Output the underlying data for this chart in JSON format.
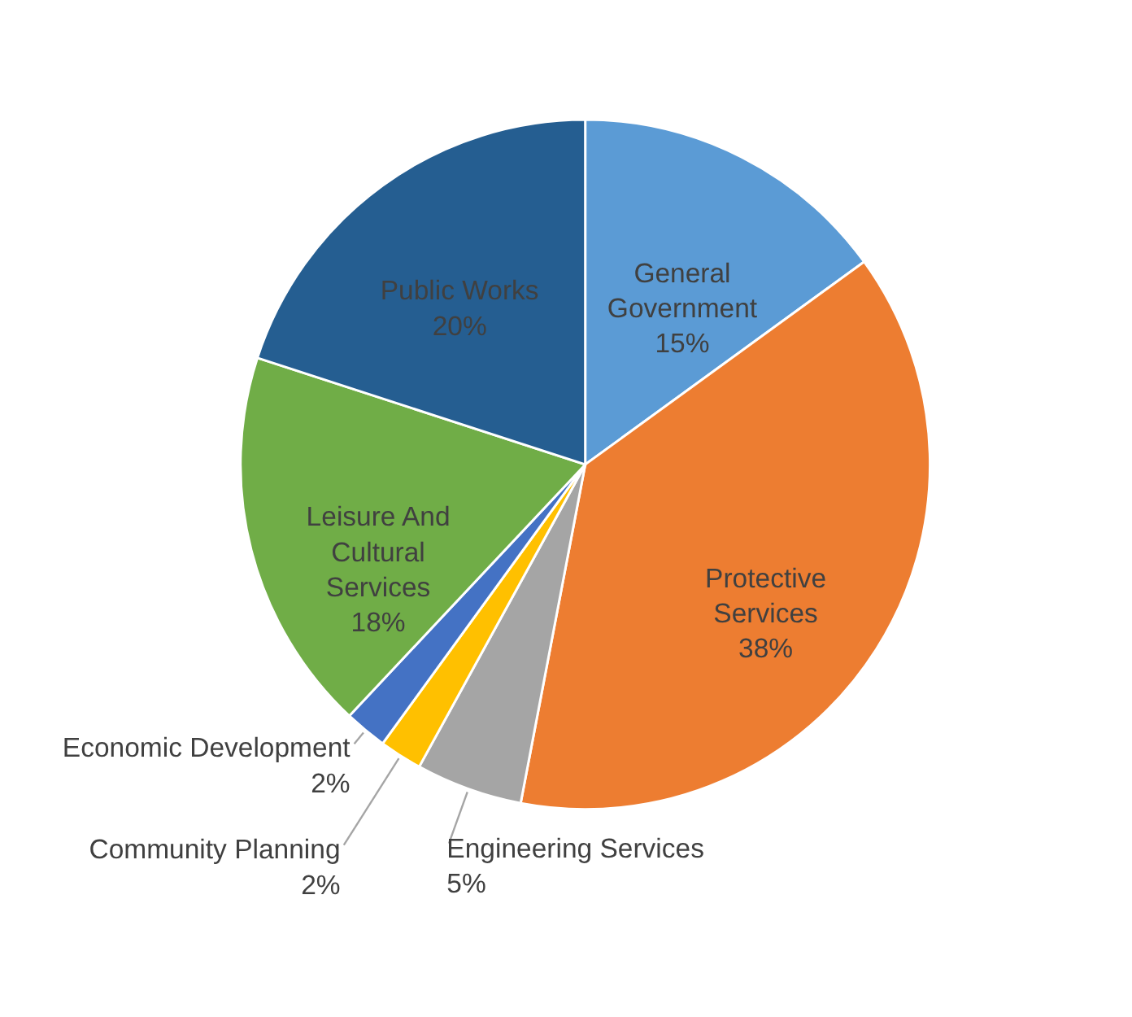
{
  "chart_data": {
    "type": "pie",
    "categories": [
      "General Government",
      "Protective Services",
      "Engineering Services",
      "Community Planning",
      "Economic Development",
      "Leisure And Cultural Services",
      "Public Works"
    ],
    "values": [
      15,
      38,
      5,
      2,
      2,
      18,
      20
    ],
    "colors": [
      "#5b9bd5",
      "#ed7d31",
      "#a5a5a5",
      "#ffc000",
      "#4472c4",
      "#70ad47",
      "#255e91"
    ],
    "value_labels": [
      "15%",
      "38%",
      "5%",
      "2%",
      "2%",
      "18%",
      "20%"
    ]
  }
}
